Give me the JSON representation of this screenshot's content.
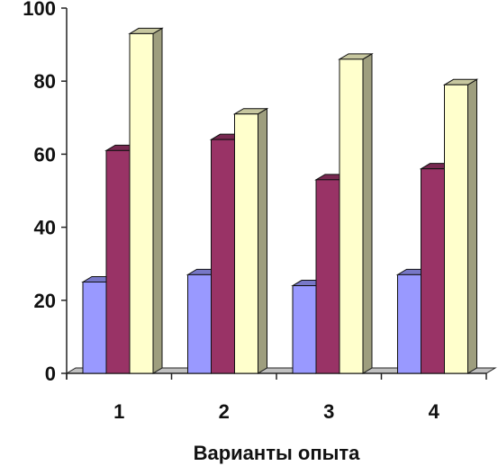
{
  "chart_data": {
    "type": "bar",
    "variant": "3d-clustered-column",
    "categories": [
      "1",
      "2",
      "3",
      "4"
    ],
    "series": [
      {
        "values": [
          25,
          27,
          24,
          27
        ],
        "color": "#9999ff"
      },
      {
        "values": [
          61,
          64,
          53,
          56
        ],
        "color": "#993366"
      },
      {
        "values": [
          93,
          71,
          86,
          79
        ],
        "color": "#ffffcc"
      }
    ],
    "title": "",
    "xlabel": "Варианты опыта",
    "ylabel": "",
    "ylim": [
      0,
      100
    ],
    "yticks": [
      "0",
      "20",
      "40",
      "60",
      "80",
      "100"
    ],
    "grid": false,
    "legend": "none"
  }
}
